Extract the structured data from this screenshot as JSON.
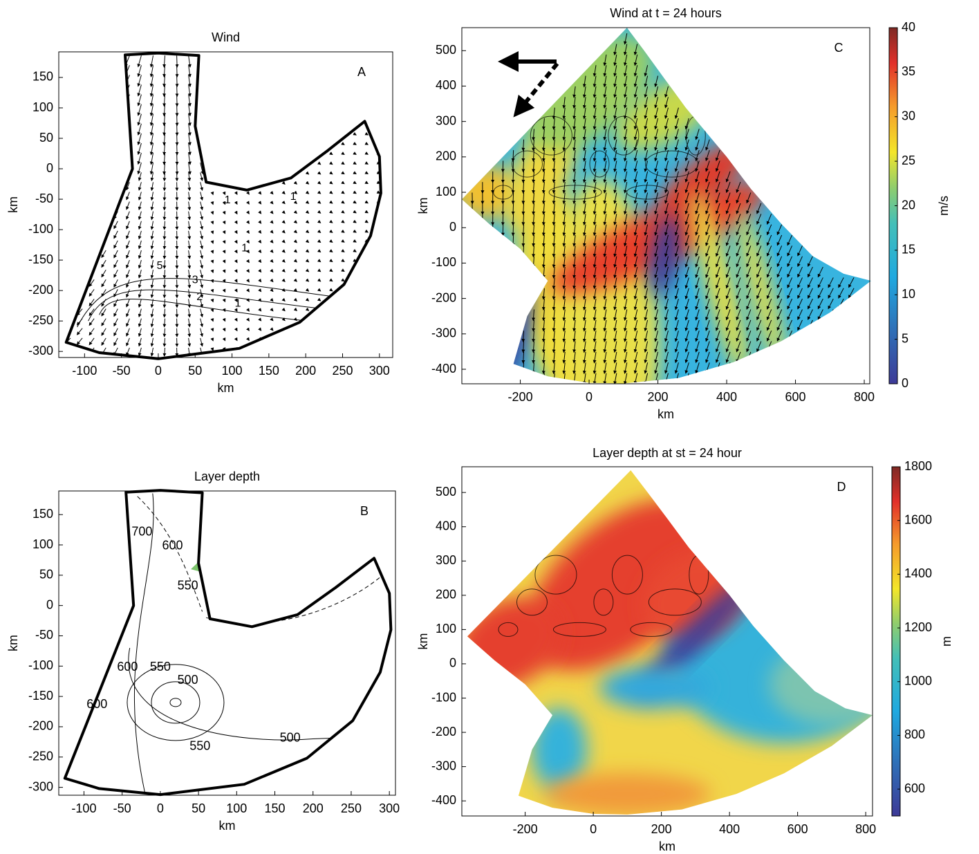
{
  "chart_data": [
    {
      "type": "quiver",
      "title": "Wind",
      "panel_label": "A",
      "xlabel": "km",
      "ylabel": "km",
      "xlim": [
        -135,
        318
      ],
      "ylim": [
        -310,
        192
      ],
      "xticks": [
        -100,
        -50,
        0,
        50,
        100,
        150,
        200,
        250,
        300
      ],
      "yticks": [
        -300,
        -250,
        -200,
        -150,
        -100,
        -50,
        0,
        50,
        100,
        150
      ],
      "contour_labels": [
        {
          "value": 1,
          "x": 94,
          "y": -52
        },
        {
          "value": 1,
          "x": 117,
          "y": -131
        },
        {
          "value": 1,
          "x": 108,
          "y": -222
        },
        {
          "value": 1,
          "x": 183,
          "y": -46
        },
        {
          "value": 2,
          "x": 56,
          "y": -211
        },
        {
          "value": 3,
          "x": 50,
          "y": -183
        },
        {
          "value": 5,
          "x": 2,
          "y": -160
        }
      ]
    },
    {
      "type": "contour",
      "title": "Layer depth",
      "panel_label": "B",
      "xlabel": "km",
      "ylabel": "km",
      "xlim": [
        -133,
        308
      ],
      "ylim": [
        -313,
        189
      ],
      "xticks": [
        -100,
        -50,
        0,
        50,
        100,
        150,
        200,
        250,
        300
      ],
      "yticks": [
        -300,
        -250,
        -200,
        -150,
        -100,
        -50,
        0,
        50,
        100,
        150
      ],
      "contour_labels": [
        {
          "value": 700,
          "x": -24,
          "y": 121
        },
        {
          "value": 600,
          "x": 16,
          "y": 98
        },
        {
          "value": 550,
          "x": 36,
          "y": 32
        },
        {
          "value": 600,
          "x": -43,
          "y": -102
        },
        {
          "value": 550,
          "x": 0,
          "y": -102
        },
        {
          "value": 500,
          "x": 36,
          "y": -124
        },
        {
          "value": 550,
          "x": 52,
          "y": -233
        },
        {
          "value": 500,
          "x": 170,
          "y": -219
        },
        {
          "value": 600,
          "x": -83,
          "y": -164
        }
      ]
    },
    {
      "type": "quiver",
      "title": "Wind at t = 24 hours",
      "panel_label": "C",
      "xlabel": "km",
      "ylabel": "km",
      "xlim": [
        -370,
        816
      ],
      "ylim": [
        -441,
        565
      ],
      "xticks": [
        -200,
        0,
        200,
        400,
        600,
        800
      ],
      "yticks": [
        -400,
        -300,
        -200,
        -100,
        0,
        100,
        200,
        300,
        400,
        500
      ],
      "colorbar": {
        "label": "m/s",
        "lim": [
          0,
          40
        ],
        "ticks": [
          0,
          5,
          10,
          15,
          20,
          25,
          30,
          35,
          40
        ]
      }
    },
    {
      "type": "heatmap",
      "title": "Layer depth at  st = 24 hour",
      "panel_label": "D",
      "xlabel": "km",
      "ylabel": "km",
      "xlim": [
        -386,
        820
      ],
      "ylim": [
        -444,
        575
      ],
      "xticks": [
        -200,
        0,
        200,
        400,
        600,
        800
      ],
      "yticks": [
        -400,
        -300,
        -200,
        -100,
        0,
        100,
        200,
        300,
        400,
        500
      ],
      "colorbar": {
        "label": "m",
        "lim": [
          500,
          1800
        ],
        "ticks": [
          600,
          800,
          1000,
          1200,
          1400,
          1600,
          1800
        ]
      }
    }
  ]
}
